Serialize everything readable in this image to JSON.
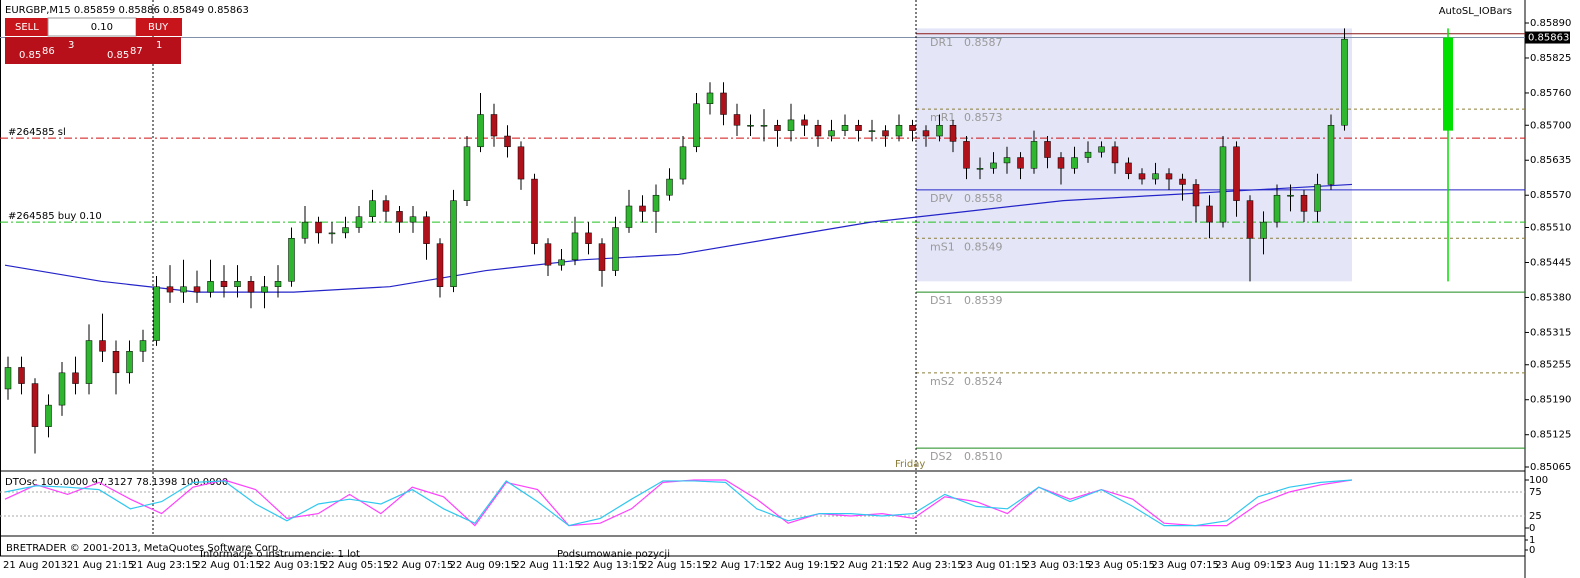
{
  "chart_data": {
    "type": "candlestick",
    "title": "EURGBP,M15  0.85859 0.85886 0.85849 0.85863",
    "indicator": "AutoSL_IOBars",
    "candles": [
      [
        0.8521,
        0.8527,
        0.8519,
        0.8525
      ],
      [
        0.8525,
        0.8527,
        0.852,
        0.8522
      ],
      [
        0.8522,
        0.8523,
        0.8509,
        0.8514
      ],
      [
        0.8514,
        0.852,
        0.8512,
        0.8518
      ],
      [
        0.8518,
        0.8526,
        0.8516,
        0.8524
      ],
      [
        0.8524,
        0.8527,
        0.852,
        0.8522
      ],
      [
        0.8522,
        0.8533,
        0.852,
        0.853
      ],
      [
        0.853,
        0.8535,
        0.8526,
        0.8528
      ],
      [
        0.8528,
        0.853,
        0.852,
        0.8524
      ],
      [
        0.8524,
        0.853,
        0.8522,
        0.8528
      ],
      [
        0.8528,
        0.8532,
        0.8526,
        0.853
      ],
      [
        0.853,
        0.8542,
        0.8529,
        0.854
      ],
      [
        0.854,
        0.8544,
        0.8537,
        0.8539
      ],
      [
        0.8539,
        0.8545,
        0.8537,
        0.854
      ],
      [
        0.854,
        0.8543,
        0.8537,
        0.8539
      ],
      [
        0.8539,
        0.8545,
        0.8538,
        0.8541
      ],
      [
        0.8541,
        0.8544,
        0.8538,
        0.854
      ],
      [
        0.854,
        0.8544,
        0.8538,
        0.8541
      ],
      [
        0.8541,
        0.8542,
        0.8536,
        0.8539
      ],
      [
        0.8539,
        0.8542,
        0.8536,
        0.854
      ],
      [
        0.854,
        0.8544,
        0.8538,
        0.8541
      ],
      [
        0.8541,
        0.8551,
        0.854,
        0.8549
      ],
      [
        0.8549,
        0.8555,
        0.8548,
        0.8552
      ],
      [
        0.8552,
        0.8553,
        0.8548,
        0.855
      ],
      [
        0.855,
        0.8552,
        0.8548,
        0.855
      ],
      [
        0.855,
        0.8553,
        0.8549,
        0.8551
      ],
      [
        0.8551,
        0.8555,
        0.855,
        0.8553
      ],
      [
        0.8553,
        0.8558,
        0.8552,
        0.8556
      ],
      [
        0.8556,
        0.8557,
        0.8552,
        0.8554
      ],
      [
        0.8554,
        0.8555,
        0.855,
        0.8552
      ],
      [
        0.8552,
        0.8555,
        0.855,
        0.8553
      ],
      [
        0.8553,
        0.8554,
        0.8545,
        0.8548
      ],
      [
        0.8548,
        0.8549,
        0.8538,
        0.854
      ],
      [
        0.854,
        0.8558,
        0.8539,
        0.8556
      ],
      [
        0.8556,
        0.8568,
        0.8555,
        0.8566
      ],
      [
        0.8566,
        0.8576,
        0.8565,
        0.8572
      ],
      [
        0.8572,
        0.8574,
        0.8566,
        0.8568
      ],
      [
        0.8568,
        0.857,
        0.8564,
        0.8566
      ],
      [
        0.8566,
        0.8567,
        0.8558,
        0.856
      ],
      [
        0.856,
        0.8561,
        0.8546,
        0.8548
      ],
      [
        0.8548,
        0.8549,
        0.8542,
        0.8544
      ],
      [
        0.8544,
        0.8547,
        0.8543,
        0.8545
      ],
      [
        0.8545,
        0.8553,
        0.8544,
        0.855
      ],
      [
        0.855,
        0.8552,
        0.8546,
        0.8548
      ],
      [
        0.8548,
        0.8549,
        0.854,
        0.8543
      ],
      [
        0.8543,
        0.8553,
        0.8542,
        0.8551
      ],
      [
        0.8551,
        0.8558,
        0.855,
        0.8555
      ],
      [
        0.8555,
        0.8557,
        0.8552,
        0.8554
      ],
      [
        0.8554,
        0.8559,
        0.855,
        0.8557
      ],
      [
        0.8557,
        0.8562,
        0.8556,
        0.856
      ],
      [
        0.856,
        0.8568,
        0.8559,
        0.8566
      ],
      [
        0.8566,
        0.8576,
        0.8565,
        0.8574
      ],
      [
        0.8574,
        0.8578,
        0.8572,
        0.8576
      ],
      [
        0.8576,
        0.8578,
        0.857,
        0.8572
      ],
      [
        0.8572,
        0.8574,
        0.8568,
        0.857
      ],
      [
        0.857,
        0.8572,
        0.8568,
        0.857
      ],
      [
        0.857,
        0.8573,
        0.8567,
        0.857
      ],
      [
        0.857,
        0.8571,
        0.8566,
        0.8569
      ],
      [
        0.8569,
        0.8574,
        0.8567,
        0.8571
      ],
      [
        0.8571,
        0.8572,
        0.8568,
        0.857
      ],
      [
        0.857,
        0.8571,
        0.8566,
        0.8568
      ],
      [
        0.8568,
        0.8571,
        0.8567,
        0.8569
      ],
      [
        0.8569,
        0.8572,
        0.8568,
        0.857
      ],
      [
        0.857,
        0.8571,
        0.8567,
        0.8569
      ],
      [
        0.8569,
        0.8571,
        0.8567,
        0.8569
      ],
      [
        0.8569,
        0.857,
        0.8566,
        0.8568
      ],
      [
        0.8568,
        0.8572,
        0.8567,
        0.857
      ],
      [
        0.857,
        0.8571,
        0.8567,
        0.8569
      ],
      [
        0.8569,
        0.857,
        0.8566,
        0.8568
      ],
      [
        0.8568,
        0.8572,
        0.8567,
        0.857
      ],
      [
        0.857,
        0.8571,
        0.8565,
        0.8567
      ],
      [
        0.8567,
        0.8568,
        0.856,
        0.8562
      ],
      [
        0.8562,
        0.8564,
        0.856,
        0.8562
      ],
      [
        0.8562,
        0.8565,
        0.8561,
        0.8563
      ],
      [
        0.8563,
        0.8566,
        0.8561,
        0.8564
      ],
      [
        0.8564,
        0.8565,
        0.856,
        0.8562
      ],
      [
        0.8562,
        0.8569,
        0.8561,
        0.8567
      ],
      [
        0.8567,
        0.8568,
        0.8562,
        0.8564
      ],
      [
        0.8564,
        0.8565,
        0.8559,
        0.8562
      ],
      [
        0.8562,
        0.8566,
        0.8561,
        0.8564
      ],
      [
        0.8564,
        0.8567,
        0.8563,
        0.8565
      ],
      [
        0.8565,
        0.8567,
        0.8564,
        0.8566
      ],
      [
        0.8566,
        0.8567,
        0.8561,
        0.8563
      ],
      [
        0.8563,
        0.8564,
        0.856,
        0.8561
      ],
      [
        0.8561,
        0.8562,
        0.8559,
        0.856
      ],
      [
        0.856,
        0.8563,
        0.8559,
        0.8561
      ],
      [
        0.8561,
        0.8562,
        0.8558,
        0.856
      ],
      [
        0.856,
        0.8561,
        0.8556,
        0.8559
      ],
      [
        0.8559,
        0.856,
        0.8552,
        0.8555
      ],
      [
        0.8555,
        0.8557,
        0.8549,
        0.8552
      ],
      [
        0.8552,
        0.8568,
        0.8551,
        0.8566
      ],
      [
        0.8566,
        0.8567,
        0.8553,
        0.8556
      ],
      [
        0.8556,
        0.8557,
        0.8541,
        0.8549
      ],
      [
        0.8549,
        0.8554,
        0.8546,
        0.8552
      ],
      [
        0.8552,
        0.8559,
        0.8551,
        0.8557
      ],
      [
        0.8557,
        0.8559,
        0.8554,
        0.8557
      ],
      [
        0.8557,
        0.8558,
        0.8552,
        0.8554
      ],
      [
        0.8554,
        0.8561,
        0.8552,
        0.8559
      ],
      [
        0.8559,
        0.8572,
        0.8558,
        0.857
      ],
      [
        0.857,
        0.8588,
        0.8569,
        0.8586
      ]
    ],
    "up_color": "#2fb52f",
    "down_color": "#b0121b",
    "ma": {
      "color": "#2424c8",
      "values": [
        0.8544,
        0.8541,
        0.8539,
        0.8539,
        0.854,
        0.8543,
        0.8545,
        0.8546,
        0.8549,
        0.8552,
        0.8554,
        0.8556,
        0.8557,
        0.8558,
        0.8559
      ]
    },
    "x_labels": [
      "21 Aug 2013",
      "21 Aug 21:15",
      "21 Aug 23:15",
      "22 Aug 01:15",
      "22 Aug 03:15",
      "22 Aug 05:15",
      "22 Aug 07:15",
      "22 Aug 09:15",
      "22 Aug 11:15",
      "22 Aug 13:15",
      "22 Aug 15:15",
      "22 Aug 17:15",
      "22 Aug 19:15",
      "22 Aug 21:15",
      "22 Aug 23:15",
      "23 Aug 01:15",
      "23 Aug 03:15",
      "23 Aug 05:15",
      "23 Aug 07:15",
      "23 Aug 09:15",
      "23 Aug 11:15",
      "23 Aug 13:15"
    ],
    "ylim": [
      0.85065,
      0.8589
    ],
    "yticks": [
      {
        "value": 0.8589,
        "label": "0.85890"
      },
      0.85825,
      {
        "value": 0.8576,
        "label": "0.85760"
      },
      {
        "value": 0.857,
        "label": "0.85700"
      },
      0.85635,
      {
        "value": 0.8557,
        "label": "0.85570"
      },
      {
        "value": 0.8551,
        "label": "0.85510"
      },
      0.85445,
      {
        "value": 0.8538,
        "label": "0.85380"
      },
      0.85315,
      0.85255,
      {
        "value": 0.8519,
        "label": "0.85190"
      },
      0.85125,
      0.85065
    ],
    "current_price": 0.85863,
    "levels": [
      {
        "name": "DR1",
        "value": 0.8587,
        "color": "#8b1a1a",
        "style": "solid"
      },
      {
        "name": "mR1",
        "value": 0.8573,
        "color": "#8b7d3a",
        "style": "dashed"
      },
      {
        "name": "DPV",
        "value": 0.8558,
        "color": "#2424c8",
        "style": "solid"
      },
      {
        "name": "mS1",
        "value": 0.8549,
        "color": "#8b7d3a",
        "style": "dashed"
      },
      {
        "name": "DS1",
        "value": 0.8539,
        "color": "#1f8a1f",
        "style": "solid"
      },
      {
        "name": "mS2",
        "value": 0.8524,
        "color": "#8b7d3a",
        "style": "dashed"
      },
      {
        "name": "DS2",
        "value": 0.851,
        "label": "0.8510",
        "color": "#1f8a1f",
        "style": "solid"
      }
    ],
    "orders": [
      {
        "label": "#264585 sl",
        "value": 0.85676,
        "color": "#d01010"
      },
      {
        "label": "#264585 buy 0.10",
        "value": 0.8552,
        "color": "#20c020"
      }
    ],
    "io_bar": {
      "open": 0.8569,
      "close": 0.85863,
      "high": 0.8588,
      "low": 0.8541,
      "color": "#00e000"
    },
    "session_label": "Friday",
    "oscillator": {
      "label": "DTOsc 100.0000 97.3127 78.1398 100.0000",
      "ylim": [
        0,
        100
      ],
      "yticks": [
        0,
        25,
        75,
        100
      ],
      "series": [
        {
          "color": "#ff40ff",
          "values": [
            60,
            90,
            70,
            95,
            60,
            30,
            85,
            100,
            80,
            20,
            30,
            70,
            30,
            85,
            65,
            5,
            95,
            80,
            5,
            10,
            40,
            95,
            100,
            100,
            60,
            10,
            30,
            25,
            30,
            20,
            65,
            55,
            30,
            85,
            60,
            80,
            60,
            10,
            5,
            5,
            50,
            75,
            90,
            100
          ]
        },
        {
          "color": "#30c8f0",
          "values": [
            75,
            88,
            85,
            80,
            40,
            55,
            95,
            98,
            50,
            15,
            50,
            60,
            50,
            80,
            40,
            10,
            98,
            55,
            5,
            20,
            60,
            98,
            98,
            95,
            40,
            15,
            30,
            30,
            25,
            30,
            70,
            45,
            40,
            85,
            55,
            80,
            45,
            5,
            5,
            15,
            65,
            85,
            95,
            100
          ]
        }
      ]
    },
    "footer_panel": {
      "yticks": [
        0,
        1
      ]
    }
  },
  "trade_panel": {
    "sell": "SELL",
    "buy": "BUY",
    "lot": "0.10",
    "sell_price": {
      "prefix": "0.85",
      "big": "86",
      "small": "3"
    },
    "buy_price": {
      "prefix": "0.85",
      "big": "87",
      "small": "1"
    }
  },
  "footer": {
    "copyright": "BRETRADER © 2001-2013, MetaQuotes Software Corp.",
    "tab_info": "Informacje o instrumencie: 1 lot",
    "tab_summary": "Podsumowanie pozycji"
  }
}
